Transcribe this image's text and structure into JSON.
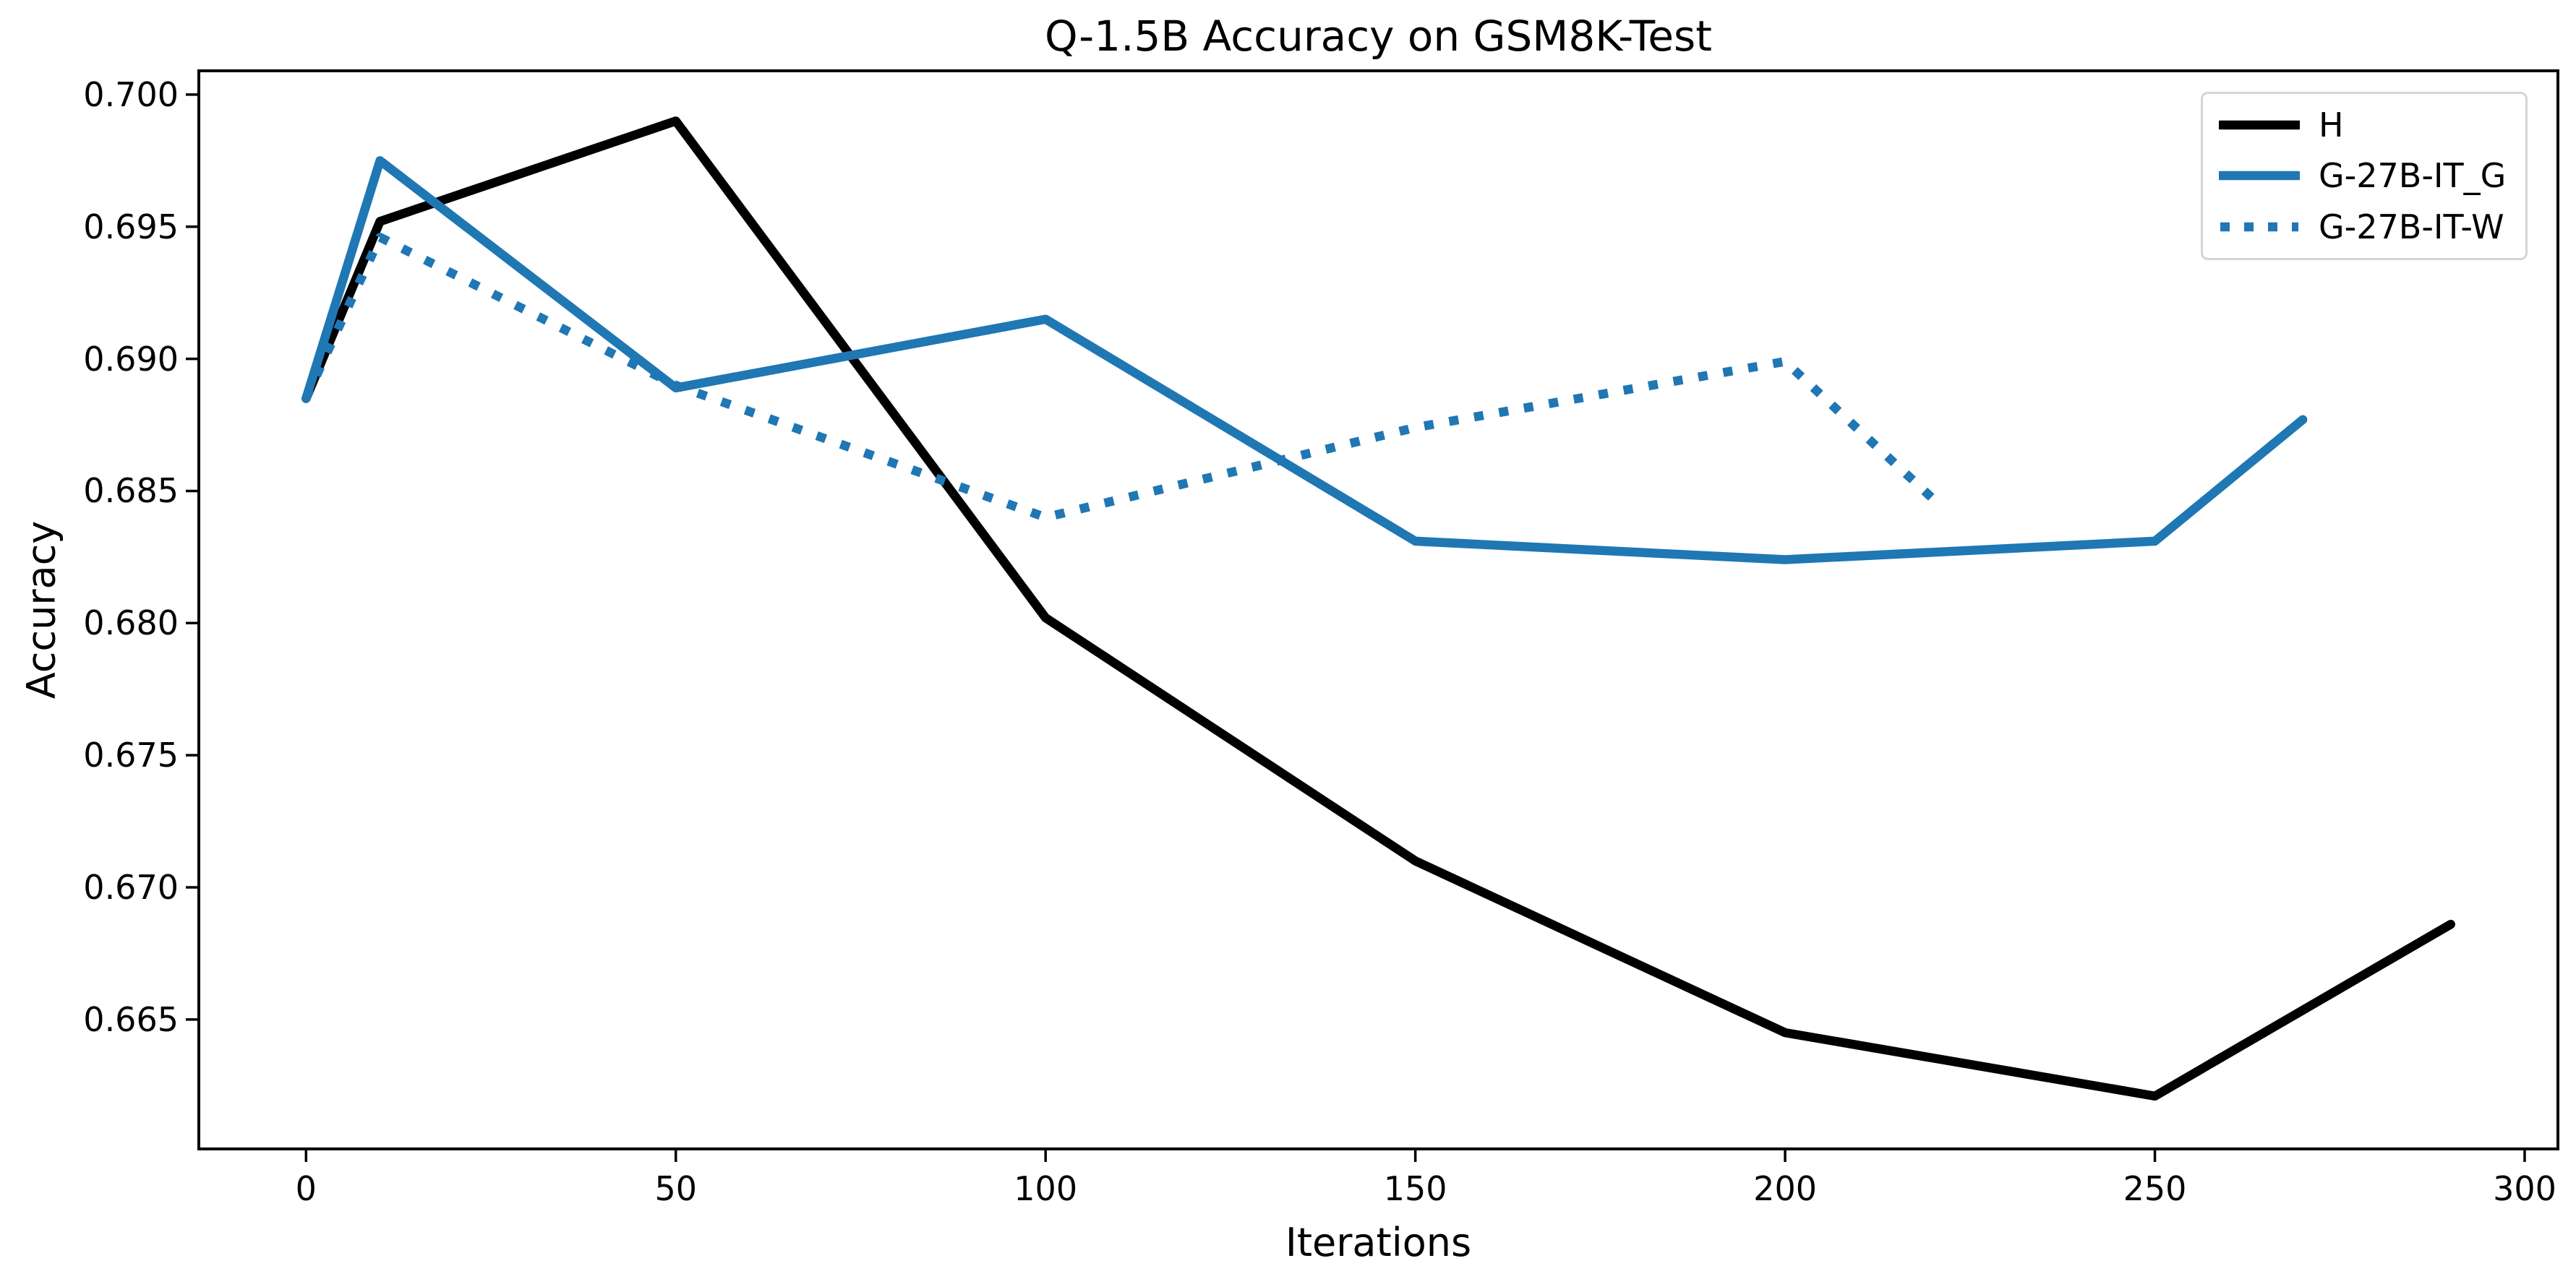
{
  "figure": {
    "background": "#ffffff",
    "axis_color": "#000000",
    "accent_blue": "#1f77b4"
  },
  "chart_data": {
    "type": "line",
    "title": "Q-1.5B Accuracy on GSM8K-Test",
    "xlabel": "Iterations",
    "ylabel": "Accuracy",
    "xlim": [
      -14.5,
      304.5
    ],
    "ylim": [
      0.6601,
      0.7009
    ],
    "grid": false,
    "legend_position": "upper right",
    "xticks": [
      0,
      50,
      100,
      150,
      200,
      250,
      300
    ],
    "xtick_labels": [
      "0",
      "50",
      "100",
      "150",
      "200",
      "250",
      "300"
    ],
    "yticks": [
      0.7,
      0.695,
      0.69,
      0.685,
      0.68,
      0.675,
      0.67,
      0.665
    ],
    "ytick_labels": [
      "0.700",
      "0.695",
      "0.690",
      "0.685",
      "0.680",
      "0.675",
      "0.670",
      "0.665"
    ],
    "series": [
      {
        "name": "H",
        "color": "#000000",
        "style": "solid",
        "x": [
          0,
          10,
          50,
          100,
          150,
          200,
          250,
          290
        ],
        "y": [
          0.6885,
          0.6952,
          0.699,
          0.6802,
          0.671,
          0.6645,
          0.6621,
          0.6686
        ]
      },
      {
        "name": "G-27B-IT_G",
        "color": "#1f77b4",
        "style": "solid",
        "x": [
          0,
          10,
          50,
          100,
          150,
          200,
          250,
          270
        ],
        "y": [
          0.6885,
          0.6975,
          0.6889,
          0.6915,
          0.6831,
          0.6824,
          0.6831,
          0.6877
        ]
      },
      {
        "name": "G-27B-IT-W",
        "color": "#1f77b4",
        "style": "dotted",
        "x": [
          0,
          10,
          50,
          100,
          150,
          200,
          220
        ],
        "y": [
          0.6885,
          0.6946,
          0.689,
          0.684,
          0.6874,
          0.6899,
          0.6847
        ]
      }
    ]
  }
}
